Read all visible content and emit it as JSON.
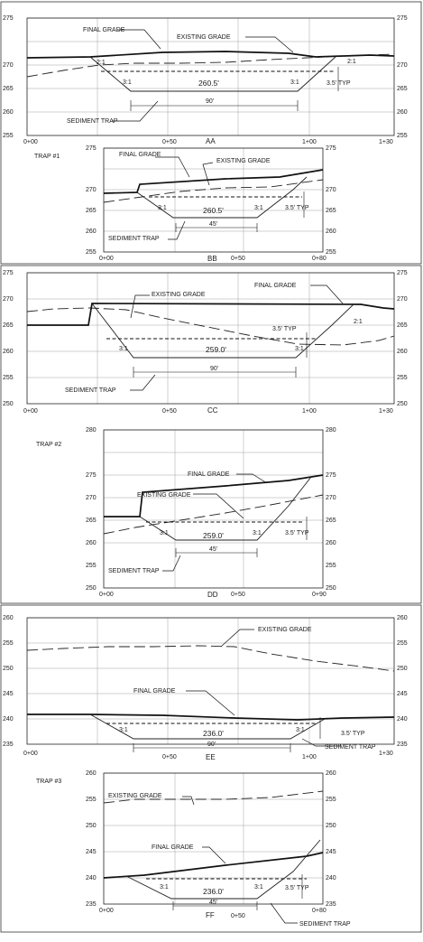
{
  "colors": {
    "line": "#111111",
    "grid": "#9a9a9a",
    "background": "#ffffff"
  },
  "sections": [
    {
      "id": "AA",
      "title": "AA",
      "trap": "",
      "elev": [
        "255",
        "260",
        "265",
        "270",
        "275"
      ],
      "sta": [
        "0+00",
        "0+50",
        "1+00",
        "1+30"
      ],
      "labels": {
        "final": "FINAL GRADE",
        "existing": "EXISTING GRADE",
        "slope_left": "2:1",
        "slope_right": "2:1",
        "side_left": "3:1",
        "side_right": "3:1",
        "bottom": "260.5'",
        "width": "90'",
        "typ": "3.5' TYP",
        "trap": "SEDIMENT TRAP"
      }
    },
    {
      "id": "BB",
      "title": "BB",
      "trap": "TRAP #1",
      "elev": [
        "255",
        "260",
        "265",
        "270",
        "275"
      ],
      "sta": [
        "0+00",
        "0+50",
        "0+80"
      ],
      "labels": {
        "final": "FINAL GRADE",
        "existing": "EXISTING GRADE",
        "side_left": "3:1",
        "side_right": "3:1",
        "bottom": "260.5'",
        "width": "45'",
        "typ": "3.5' TYP",
        "trap": "SEDIMENT TRAP"
      }
    },
    {
      "id": "CC",
      "title": "CC",
      "trap": "",
      "elev": [
        "250",
        "255",
        "260",
        "265",
        "270",
        "275"
      ],
      "sta": [
        "0+00",
        "0+50",
        "1+00",
        "1+30"
      ],
      "labels": {
        "final": "FINAL GRADE",
        "existing": "EXISTING GRADE",
        "slope_right": "2:1",
        "side_left": "3:1",
        "side_right": "3:1",
        "bottom": "259.0'",
        "width": "90'",
        "typ": "3.5' TYP",
        "trap": "SEDIMENT TRAP"
      }
    },
    {
      "id": "DD",
      "title": "DD",
      "trap": "TRAP #2",
      "elev": [
        "250",
        "255",
        "260",
        "265",
        "270",
        "275",
        "280"
      ],
      "sta": [
        "0+00",
        "0+50",
        "0+90"
      ],
      "labels": {
        "final": "FINAL GRADE",
        "existing": "EXISTING GRADE",
        "side_left": "3:1",
        "side_right": "3:1",
        "bottom": "259.0'",
        "width": "45'",
        "typ": "3.5' TYP",
        "trap": "SEDIMENT TRAP"
      }
    },
    {
      "id": "EE",
      "title": "EE",
      "trap": "",
      "elev": [
        "235",
        "240",
        "245",
        "250",
        "255",
        "260"
      ],
      "sta": [
        "0+00",
        "0+50",
        "1+00",
        "1+30"
      ],
      "labels": {
        "final": "FINAL GRADE",
        "existing": "EXISTING GRADE",
        "side_left": "3:1",
        "side_right": "3:1",
        "bottom": "236.0'",
        "width": "90'",
        "typ": "3.5' TYP",
        "trap": "SEDIMENT TRAP"
      }
    },
    {
      "id": "FF",
      "title": "FF",
      "trap": "TRAP #3",
      "elev": [
        "235",
        "240",
        "245",
        "250",
        "255",
        "260"
      ],
      "sta": [
        "0+00",
        "0+50",
        "0+80"
      ],
      "labels": {
        "final": "FINAL GRADE",
        "existing": "EXISTING GRADE",
        "side_left": "3:1",
        "side_right": "3:1",
        "bottom": "236.0'",
        "width": "45'",
        "typ": "3.5' TYP",
        "trap": "SEDIMENT TRAP"
      }
    }
  ]
}
